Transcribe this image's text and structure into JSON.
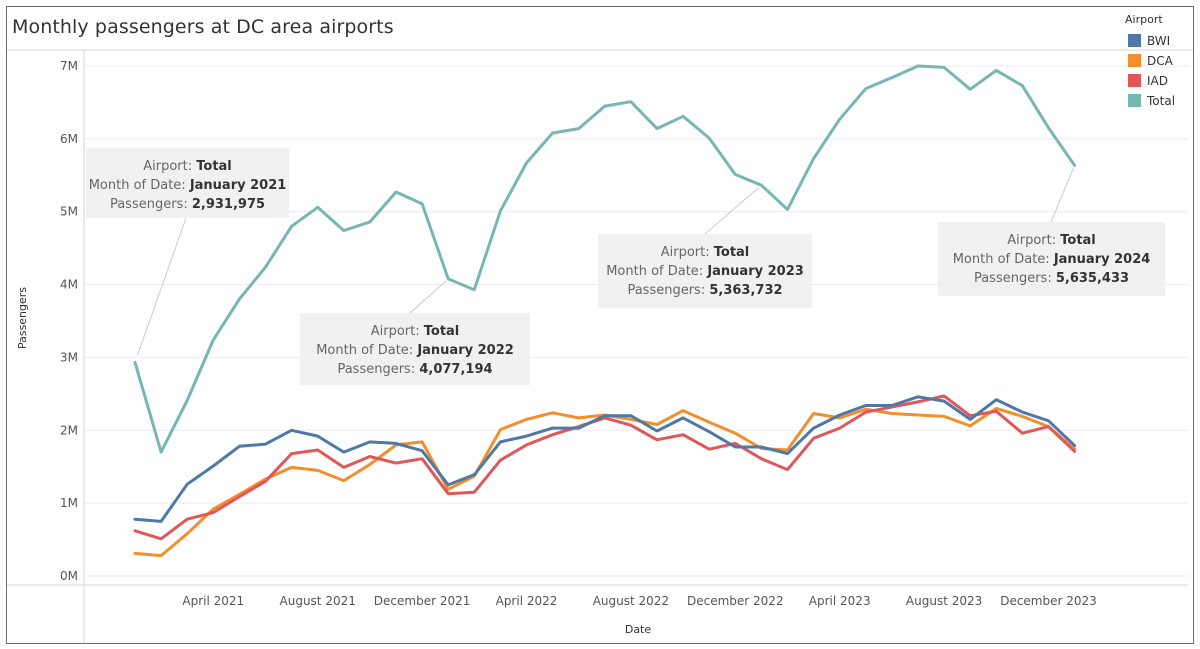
{
  "title": "Monthly passengers at DC area airports",
  "legend": {
    "title": "Airport",
    "position": "top-right"
  },
  "chart_data": {
    "type": "line",
    "title": "Monthly passengers at DC area airports",
    "xlabel": "Date",
    "ylabel": "Passengers",
    "ylim": [
      0,
      7200000
    ],
    "y_ticks": [
      0,
      1000000,
      2000000,
      3000000,
      4000000,
      5000000,
      6000000,
      7000000
    ],
    "y_tick_labels": [
      "0M",
      "1M",
      "2M",
      "3M",
      "4M",
      "5M",
      "6M",
      "7M"
    ],
    "x_tick_labels": [
      "April 2021",
      "August 2021",
      "December 2021",
      "April 2022",
      "August 2022",
      "December 2022",
      "April 2023",
      "August 2023",
      "December 2023"
    ],
    "x_tick_months": [
      3,
      7,
      11,
      15,
      19,
      23,
      27,
      31,
      35
    ],
    "grid": "horizontal",
    "x": [
      "2021-01",
      "2021-02",
      "2021-03",
      "2021-04",
      "2021-05",
      "2021-06",
      "2021-07",
      "2021-08",
      "2021-09",
      "2021-10",
      "2021-11",
      "2021-12",
      "2022-01",
      "2022-02",
      "2022-03",
      "2022-04",
      "2022-05",
      "2022-06",
      "2022-07",
      "2022-08",
      "2022-09",
      "2022-10",
      "2022-11",
      "2022-12",
      "2023-01",
      "2023-02",
      "2023-03",
      "2023-04",
      "2023-05",
      "2023-06",
      "2023-07",
      "2023-08",
      "2023-09",
      "2023-10",
      "2023-11",
      "2023-12",
      "2024-01"
    ],
    "series": [
      {
        "name": "BWI",
        "color": "#4e79a7",
        "values": [
          780000,
          750000,
          1260000,
          1510000,
          1780000,
          1810000,
          2000000,
          1920000,
          1700000,
          1840000,
          1820000,
          1720000,
          1250000,
          1390000,
          1840000,
          1920000,
          2030000,
          2030000,
          2200000,
          2200000,
          1990000,
          2170000,
          1980000,
          1770000,
          1770000,
          1680000,
          2030000,
          2210000,
          2340000,
          2340000,
          2460000,
          2400000,
          2150000,
          2420000,
          2250000,
          2130000,
          1790000
        ]
      },
      {
        "name": "DCA",
        "color": "#f28e2b",
        "values": [
          310000,
          280000,
          580000,
          920000,
          1120000,
          1330000,
          1490000,
          1450000,
          1310000,
          1530000,
          1800000,
          1840000,
          1190000,
          1370000,
          2010000,
          2150000,
          2240000,
          2170000,
          2210000,
          2150000,
          2080000,
          2270000,
          2110000,
          1960000,
          1750000,
          1730000,
          2230000,
          2170000,
          2290000,
          2230000,
          2210000,
          2190000,
          2060000,
          2300000,
          2190000,
          2050000,
          1740000
        ]
      },
      {
        "name": "IAD",
        "color": "#e15759",
        "values": [
          620000,
          510000,
          780000,
          870000,
          1090000,
          1300000,
          1680000,
          1730000,
          1490000,
          1640000,
          1550000,
          1610000,
          1130000,
          1150000,
          1590000,
          1800000,
          1940000,
          2050000,
          2170000,
          2070000,
          1870000,
          1940000,
          1740000,
          1820000,
          1610000,
          1460000,
          1890000,
          2030000,
          2250000,
          2320000,
          2390000,
          2470000,
          2200000,
          2260000,
          1960000,
          2050000,
          1710000
        ]
      },
      {
        "name": "Total",
        "color": "#76b7b2",
        "values": [
          2931975,
          1700000,
          2410000,
          3240000,
          3800000,
          4240000,
          4800000,
          5060000,
          4740000,
          4860000,
          5270000,
          5110000,
          4077194,
          3930000,
          5010000,
          5670000,
          6080000,
          6140000,
          6450000,
          6510000,
          6140000,
          6310000,
          6010000,
          5510000,
          5363732,
          5030000,
          5730000,
          6270000,
          6690000,
          6840000,
          7000000,
          6980000,
          6680000,
          6940000,
          6730000,
          6150000,
          5635433
        ]
      }
    ],
    "annotations": [
      {
        "series": "Total",
        "index": 0,
        "lines": [
          [
            "Airport: ",
            "Total"
          ],
          [
            "Month of Date: ",
            "January 2021"
          ],
          [
            "Passengers: ",
            "2,931,975"
          ]
        ]
      },
      {
        "series": "Total",
        "index": 12,
        "lines": [
          [
            "Airport: ",
            "Total"
          ],
          [
            "Month of Date: ",
            "January 2022"
          ],
          [
            "Passengers: ",
            "4,077,194"
          ]
        ]
      },
      {
        "series": "Total",
        "index": 24,
        "lines": [
          [
            "Airport: ",
            "Total"
          ],
          [
            "Month of Date: ",
            "January 2023"
          ],
          [
            "Passengers: ",
            "5,363,732"
          ]
        ]
      },
      {
        "series": "Total",
        "index": 36,
        "lines": [
          [
            "Airport: ",
            "Total"
          ],
          [
            "Month of Date: ",
            "January 2024"
          ],
          [
            "Passengers: ",
            "5,635,433"
          ]
        ]
      }
    ]
  }
}
